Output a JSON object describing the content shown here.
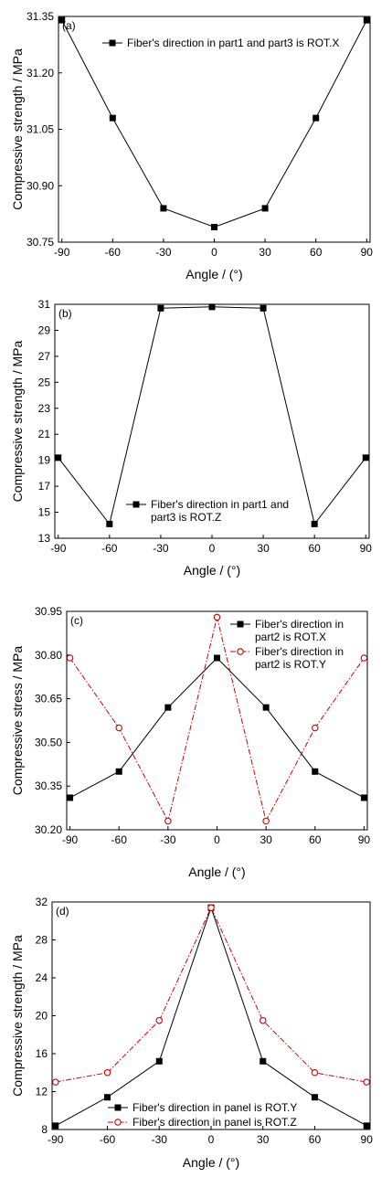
{
  "chart_data": [
    {
      "type": "line",
      "panel_label": "(a)",
      "xlabel": "Angle / (°)",
      "ylabel": "Compressive strength / MPa",
      "x": [
        -90,
        -60,
        -30,
        0,
        30,
        60,
        90
      ],
      "xticks": [
        "-90",
        "-60",
        "-30",
        "0",
        "30",
        "60",
        "90"
      ],
      "xlim": [
        -92,
        92
      ],
      "yticks": [
        "30.75",
        "30.90",
        "31.05",
        "31.20",
        "31.35"
      ],
      "ylim": [
        30.75,
        31.35
      ],
      "legend_position": "top",
      "series": [
        {
          "name_lines": [
            "Fiber's direction in part1 and part3 is ROT.X"
          ],
          "values": [
            31.34,
            31.08,
            30.84,
            30.79,
            30.84,
            31.08,
            31.34
          ],
          "color": "#000000",
          "marker": "filled-square",
          "dash": "solid"
        }
      ]
    },
    {
      "type": "line",
      "panel_label": "(b)",
      "xlabel": "Angle / (°)",
      "ylabel": "Compressive strength / MPa",
      "x": [
        -90,
        -60,
        -30,
        0,
        30,
        60,
        90
      ],
      "xticks": [
        "-90",
        "-60",
        "-30",
        "0",
        "30",
        "60",
        "90"
      ],
      "xlim": [
        -92,
        92
      ],
      "yticks": [
        "13",
        "15",
        "17",
        "19",
        "21",
        "23",
        "25",
        "27",
        "29",
        "31"
      ],
      "ylim": [
        13,
        31
      ],
      "legend_position": "bottom-center",
      "series": [
        {
          "name_lines": [
            "Fiber's direction in part1 and",
            "part3 is ROT.Z"
          ],
          "values": [
            19.2,
            14.1,
            30.7,
            30.8,
            30.7,
            14.1,
            19.2
          ],
          "color": "#000000",
          "marker": "filled-square",
          "dash": "solid"
        }
      ]
    },
    {
      "type": "line",
      "panel_label": "(c)",
      "xlabel": "Angle / (°)",
      "ylabel": "Compressive stress / MPa",
      "x": [
        -90,
        -60,
        -30,
        0,
        30,
        60,
        90
      ],
      "xticks": [
        "-90",
        "-60",
        "-30",
        "0",
        "30",
        "60",
        "90"
      ],
      "xlim": [
        -92,
        92
      ],
      "yticks": [
        "30.20",
        "30.35",
        "30.50",
        "30.65",
        "30.80",
        "30.95"
      ],
      "ylim": [
        30.2,
        30.95
      ],
      "legend_position": "top-right",
      "series": [
        {
          "name_lines": [
            "Fiber's direction in",
            "part2 is ROT.X"
          ],
          "values": [
            30.31,
            30.4,
            30.62,
            30.79,
            30.62,
            30.4,
            30.31
          ],
          "color": "#000000",
          "marker": "filled-square",
          "dash": "solid"
        },
        {
          "name_lines": [
            "Fiber's direction in",
            "part2 is ROT.Y"
          ],
          "values": [
            30.79,
            30.55,
            30.23,
            30.93,
            30.23,
            30.55,
            30.79
          ],
          "color": "#cc0000",
          "marker": "open-circle",
          "dash": "dashdot"
        }
      ]
    },
    {
      "type": "line",
      "panel_label": "(d)",
      "xlabel": "Angle / (°)",
      "ylabel": "Compressive strength / MPa",
      "x": [
        -90,
        -60,
        -30,
        0,
        30,
        60,
        90
      ],
      "xticks": [
        "-90",
        "-60",
        "-30",
        "0",
        "30",
        "60",
        "90"
      ],
      "xlim": [
        -92,
        92
      ],
      "yticks": [
        "8",
        "12",
        "16",
        "20",
        "24",
        "28",
        "32"
      ],
      "ylim": [
        8,
        32
      ],
      "legend_position": "bottom-left",
      "series": [
        {
          "name_lines": [
            "Fiber's direction in panel is ROT.Y"
          ],
          "values": [
            8.4,
            11.4,
            15.2,
            31.4,
            15.2,
            11.4,
            8.4
          ],
          "color": "#000000",
          "marker": "filled-square",
          "dash": "solid"
        },
        {
          "name_lines": [
            "Fiber's direction in panel is ROT.Z"
          ],
          "values": [
            13.0,
            14.0,
            19.5,
            31.4,
            19.5,
            14.0,
            13.0
          ],
          "color": "#cc0000",
          "marker": "open-circle",
          "dash": "dashdot"
        }
      ]
    }
  ]
}
